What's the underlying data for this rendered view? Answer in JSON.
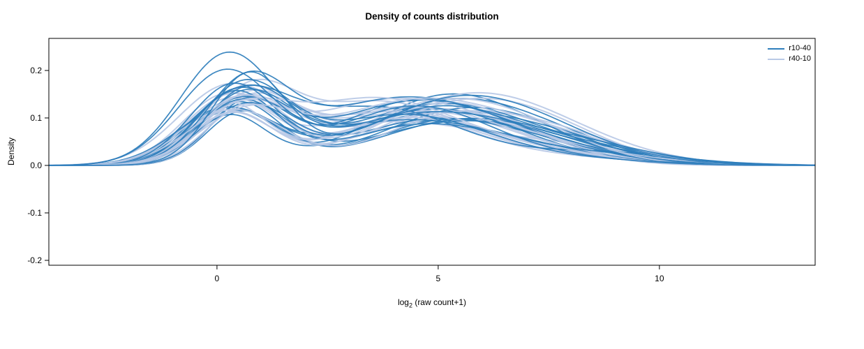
{
  "chart_data": {
    "type": "line",
    "subtype": "density",
    "title": "Density of counts distribution",
    "xlabel": {
      "prefix": "log",
      "sub": "2",
      "rest": " (raw count+1)"
    },
    "ylabel": "Density",
    "xlim": [
      -3.8,
      13.52
    ],
    "ylim": [
      -0.2103,
      0.2676
    ],
    "xticks": [
      0,
      5,
      10
    ],
    "xtick_labels": [
      "0",
      "5",
      "10"
    ],
    "yticks": [
      -0.2,
      -0.1,
      0.0,
      0.1,
      0.2
    ],
    "ytick_labels": [
      "-0.2",
      "-0.1",
      "0.0",
      "0.1",
      "0.2"
    ],
    "grid": false,
    "background": "#ffffff",
    "box_color": "#000000",
    "legend": {
      "position": "top-right",
      "entries": [
        {
          "label": "r10-40",
          "color": "#2e7ebc"
        },
        {
          "label": "r40-10",
          "color": "#b9c9e6"
        }
      ]
    },
    "series": [
      {
        "name": "r10-40",
        "color": "#2e7ebc",
        "line_width": 1.7,
        "opacity": 0.92,
        "seed": 101,
        "peak1_heights": [
          0.228,
          0.197,
          0.188,
          0.168,
          0.162,
          0.157,
          0.152,
          0.149,
          0.146,
          0.143,
          0.14,
          0.137,
          0.134,
          0.131,
          0.128,
          0.125,
          0.122,
          0.118,
          0.114,
          0.11,
          0.105,
          0.1
        ]
      },
      {
        "name": "r40-10",
        "color": "#b9c9e6",
        "line_width": 2.0,
        "opacity": 0.92,
        "seed": 202,
        "peak1_heights": [
          0.155,
          0.15,
          0.146,
          0.143,
          0.14,
          0.137,
          0.134,
          0.131,
          0.128,
          0.126,
          0.124,
          0.122,
          0.12,
          0.117,
          0.114,
          0.111,
          0.108,
          0.105,
          0.102,
          0.098
        ]
      }
    ],
    "curve_model": {
      "description": "each density curve = sum of three gaussian bumps: sharp peak near x=0.4, broad hump near x=4.7, small right tail bump near x=8",
      "x_points": 220,
      "ranges": {
        "m1": [
          0.15,
          0.75
        ],
        "s1": [
          0.8,
          1.15
        ],
        "m2": [
          3.6,
          5.7
        ],
        "s2": [
          1.7,
          2.3
        ],
        "h2": [
          0.085,
          0.145
        ],
        "m3": [
          7.0,
          8.8
        ],
        "s3": [
          1.4,
          2.0
        ],
        "h3": [
          0.005,
          0.035
        ]
      }
    }
  }
}
